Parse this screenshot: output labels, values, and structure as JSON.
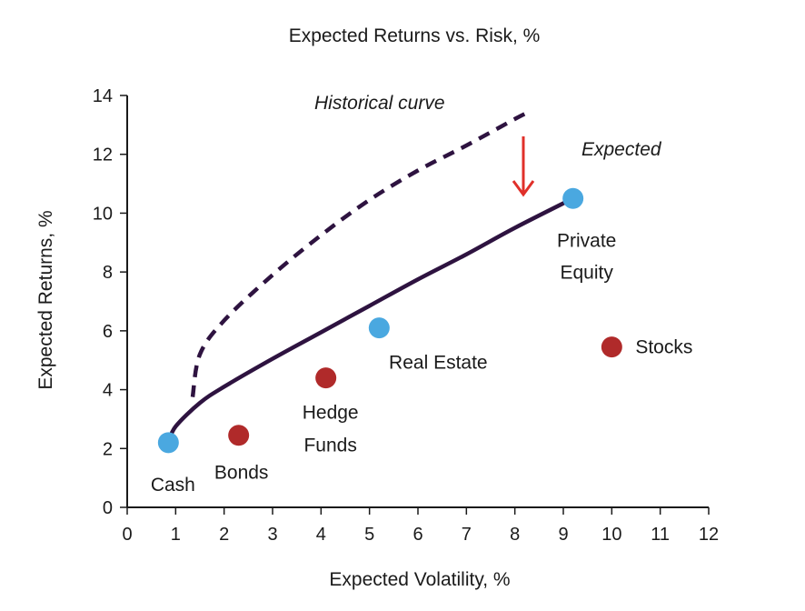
{
  "chart_data": {
    "type": "scatter",
    "title": "Expected Returns vs. Risk, %",
    "xlabel": "Expected Volatility, %",
    "ylabel": "Expected Returns, %",
    "xlim": [
      0,
      12
    ],
    "ylim": [
      0,
      14
    ],
    "x_ticks": [
      "0",
      "1",
      "2",
      "3",
      "4",
      "5",
      "6",
      "7",
      "8",
      "9",
      "10",
      "11",
      "12"
    ],
    "y_ticks": [
      "0",
      "2",
      "4",
      "6",
      "8",
      "10",
      "12",
      "14"
    ],
    "grid": false,
    "colors": {
      "blue": "#4aa8e0",
      "red": "#b02a2a",
      "curve": "#2e1340",
      "arrow": "#e0302a"
    },
    "points": [
      {
        "label": "Cash",
        "x": 0.85,
        "y": 2.2,
        "color": "blue"
      },
      {
        "label": "Bonds",
        "x": 2.3,
        "y": 2.45,
        "color": "red"
      },
      {
        "label": "Hedge Funds",
        "x": 4.1,
        "y": 4.4,
        "color": "red"
      },
      {
        "label": "Real Estate",
        "x": 5.2,
        "y": 6.1,
        "color": "blue"
      },
      {
        "label": "Private Equity",
        "x": 9.2,
        "y": 10.5,
        "color": "blue"
      },
      {
        "label": "Stocks",
        "x": 10.0,
        "y": 5.45,
        "color": "red"
      }
    ],
    "expected_curve": {
      "name": "Expected",
      "points": [
        [
          0.85,
          2.2
        ],
        [
          1.0,
          2.75
        ],
        [
          1.5,
          3.55
        ],
        [
          2.0,
          4.1
        ],
        [
          3.0,
          5.05
        ],
        [
          4.0,
          5.95
        ],
        [
          5.0,
          6.85
        ],
        [
          6.0,
          7.75
        ],
        [
          7.0,
          8.6
        ],
        [
          8.0,
          9.5
        ],
        [
          9.2,
          10.5
        ]
      ]
    },
    "historical_curve": {
      "name": "Historical curve",
      "points": [
        [
          1.35,
          3.75
        ],
        [
          1.5,
          5.2
        ],
        [
          2.0,
          6.35
        ],
        [
          3.0,
          7.9
        ],
        [
          4.0,
          9.25
        ],
        [
          5.0,
          10.45
        ],
        [
          6.0,
          11.45
        ],
        [
          7.0,
          12.3
        ],
        [
          8.0,
          13.2
        ],
        [
          8.3,
          13.45
        ]
      ]
    }
  }
}
